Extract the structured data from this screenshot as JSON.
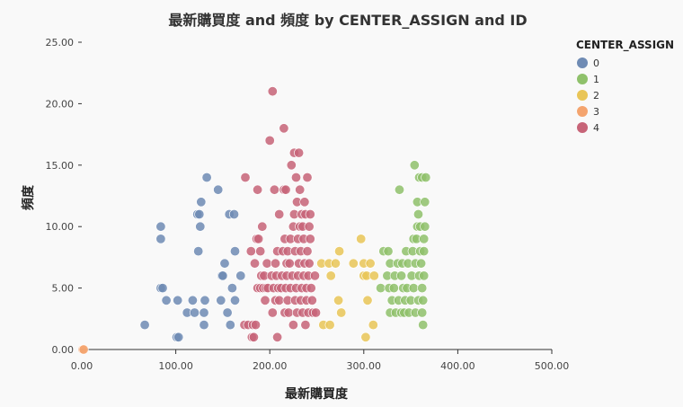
{
  "chart_data": {
    "type": "scatter",
    "title": "最新購買度 and 頻度 by CENTER_ASSIGN and ID",
    "xlabel": "最新購買度",
    "ylabel": "頻度",
    "xlim": [
      0,
      500
    ],
    "ylim": [
      0,
      25
    ],
    "x_ticks": [
      "0.00",
      "100.00",
      "200.00",
      "300.00",
      "400.00",
      "500.00"
    ],
    "y_ticks": [
      "0.00",
      "5.00",
      "10.00",
      "15.00",
      "20.00",
      "25.00"
    ],
    "legend": {
      "title": "CENTER_ASSIGN",
      "placement": "top-right"
    },
    "grid": false,
    "series": [
      {
        "name": "0",
        "color": "#6f8bb4",
        "points": [
          [
            67,
            2
          ],
          [
            84,
            10
          ],
          [
            84,
            9
          ],
          [
            84,
            5
          ],
          [
            86,
            5
          ],
          [
            90,
            4
          ],
          [
            102,
            4
          ],
          [
            101,
            1
          ],
          [
            103,
            1
          ],
          [
            112,
            3
          ],
          [
            118,
            4
          ],
          [
            120,
            3
          ],
          [
            123,
            11
          ],
          [
            124,
            8
          ],
          [
            125,
            11
          ],
          [
            126,
            10
          ],
          [
            127,
            12
          ],
          [
            130,
            2
          ],
          [
            130,
            3
          ],
          [
            131,
            4
          ],
          [
            133,
            14
          ],
          [
            145,
            13
          ],
          [
            148,
            4
          ],
          [
            149,
            6
          ],
          [
            150,
            6
          ],
          [
            152,
            7
          ],
          [
            155,
            3
          ],
          [
            157,
            11
          ],
          [
            158,
            2
          ],
          [
            160,
            5
          ],
          [
            162,
            11
          ],
          [
            163,
            8
          ],
          [
            163,
            4
          ],
          [
            169,
            6
          ]
        ]
      },
      {
        "name": "1",
        "color": "#8fc16b",
        "points": [
          [
            318,
            5
          ],
          [
            321,
            8
          ],
          [
            325,
            6
          ],
          [
            326,
            8
          ],
          [
            327,
            5
          ],
          [
            328,
            3
          ],
          [
            328,
            7
          ],
          [
            330,
            4
          ],
          [
            332,
            5
          ],
          [
            333,
            6
          ],
          [
            334,
            3
          ],
          [
            336,
            7
          ],
          [
            337,
            4
          ],
          [
            338,
            13
          ],
          [
            340,
            3
          ],
          [
            340,
            6
          ],
          [
            341,
            7
          ],
          [
            342,
            5
          ],
          [
            343,
            3
          ],
          [
            344,
            4
          ],
          [
            345,
            8
          ],
          [
            346,
            5
          ],
          [
            347,
            7
          ],
          [
            348,
            3
          ],
          [
            350,
            4
          ],
          [
            351,
            6
          ],
          [
            352,
            8
          ],
          [
            353,
            5
          ],
          [
            353,
            9
          ],
          [
            354,
            15
          ],
          [
            355,
            3
          ],
          [
            355,
            7
          ],
          [
            356,
            9
          ],
          [
            357,
            10
          ],
          [
            357,
            12
          ],
          [
            358,
            4
          ],
          [
            358,
            11
          ],
          [
            359,
            6
          ],
          [
            359,
            14
          ],
          [
            360,
            8
          ],
          [
            360,
            10
          ],
          [
            361,
            7
          ],
          [
            362,
            14
          ],
          [
            362,
            5
          ],
          [
            362,
            3
          ],
          [
            363,
            2
          ],
          [
            363,
            4
          ],
          [
            364,
            9
          ],
          [
            364,
            6
          ],
          [
            364,
            8
          ],
          [
            365,
            10
          ],
          [
            365,
            12
          ],
          [
            366,
            14
          ]
        ]
      },
      {
        "name": "2",
        "color": "#e9c557",
        "points": [
          [
            255,
            7
          ],
          [
            257,
            2
          ],
          [
            263,
            7
          ],
          [
            264,
            2
          ],
          [
            265,
            6
          ],
          [
            270,
            7
          ],
          [
            273,
            4
          ],
          [
            274,
            8
          ],
          [
            276,
            3
          ],
          [
            289,
            7
          ],
          [
            297,
            9
          ],
          [
            300,
            6
          ],
          [
            300,
            7
          ],
          [
            302,
            1
          ],
          [
            303,
            6
          ],
          [
            304,
            4
          ],
          [
            307,
            7
          ],
          [
            310,
            2
          ],
          [
            311,
            6
          ]
        ]
      },
      {
        "name": "3",
        "color": "#f4a46e",
        "points": [
          [
            1,
            0
          ],
          [
            2,
            0
          ]
        ]
      },
      {
        "name": "4",
        "color": "#c76478",
        "points": [
          [
            173,
            2
          ],
          [
            174,
            14
          ],
          [
            177,
            2
          ],
          [
            180,
            8
          ],
          [
            181,
            1
          ],
          [
            182,
            2
          ],
          [
            183,
            1
          ],
          [
            184,
            7
          ],
          [
            185,
            2
          ],
          [
            186,
            9
          ],
          [
            187,
            5
          ],
          [
            187,
            13
          ],
          [
            188,
            9
          ],
          [
            190,
            5
          ],
          [
            190,
            8
          ],
          [
            191,
            6
          ],
          [
            192,
            10
          ],
          [
            193,
            5
          ],
          [
            194,
            6
          ],
          [
            195,
            4
          ],
          [
            196,
            5
          ],
          [
            197,
            7
          ],
          [
            198,
            5
          ],
          [
            200,
            17
          ],
          [
            202,
            6
          ],
          [
            203,
            21
          ],
          [
            203,
            3
          ],
          [
            204,
            5
          ],
          [
            205,
            13
          ],
          [
            206,
            4
          ],
          [
            206,
            7
          ],
          [
            207,
            6
          ],
          [
            208,
            1
          ],
          [
            208,
            8
          ],
          [
            209,
            5
          ],
          [
            210,
            4
          ],
          [
            210,
            11
          ],
          [
            212,
            5
          ],
          [
            213,
            6
          ],
          [
            214,
            8
          ],
          [
            215,
            13
          ],
          [
            215,
            18
          ],
          [
            216,
            3
          ],
          [
            216,
            9
          ],
          [
            217,
            5
          ],
          [
            217,
            13
          ],
          [
            218,
            6
          ],
          [
            218,
            7
          ],
          [
            219,
            4
          ],
          [
            219,
            8
          ],
          [
            220,
            3
          ],
          [
            221,
            7
          ],
          [
            222,
            5
          ],
          [
            222,
            9
          ],
          [
            223,
            15
          ],
          [
            224,
            6
          ],
          [
            225,
            2
          ],
          [
            225,
            10
          ],
          [
            226,
            11
          ],
          [
            226,
            16
          ],
          [
            227,
            4
          ],
          [
            227,
            8
          ],
          [
            228,
            5
          ],
          [
            228,
            14
          ],
          [
            229,
            3
          ],
          [
            229,
            12
          ],
          [
            230,
            6
          ],
          [
            230,
            9
          ],
          [
            231,
            7
          ],
          [
            231,
            16
          ],
          [
            232,
            10
          ],
          [
            232,
            13
          ],
          [
            233,
            4
          ],
          [
            233,
            8
          ],
          [
            234,
            5
          ],
          [
            234,
            11
          ],
          [
            235,
            3
          ],
          [
            235,
            10
          ],
          [
            236,
            6
          ],
          [
            236,
            9
          ],
          [
            237,
            7
          ],
          [
            237,
            12
          ],
          [
            238,
            11
          ],
          [
            238,
            2
          ],
          [
            239,
            5
          ],
          [
            239,
            4
          ],
          [
            240,
            8
          ],
          [
            240,
            14
          ],
          [
            241,
            6
          ],
          [
            241,
            3
          ],
          [
            242,
            10
          ],
          [
            242,
            7
          ],
          [
            243,
            11
          ],
          [
            243,
            9
          ],
          [
            244,
            5
          ],
          [
            245,
            4
          ],
          [
            246,
            3
          ],
          [
            248,
            6
          ],
          [
            249,
            3
          ]
        ]
      }
    ]
  }
}
